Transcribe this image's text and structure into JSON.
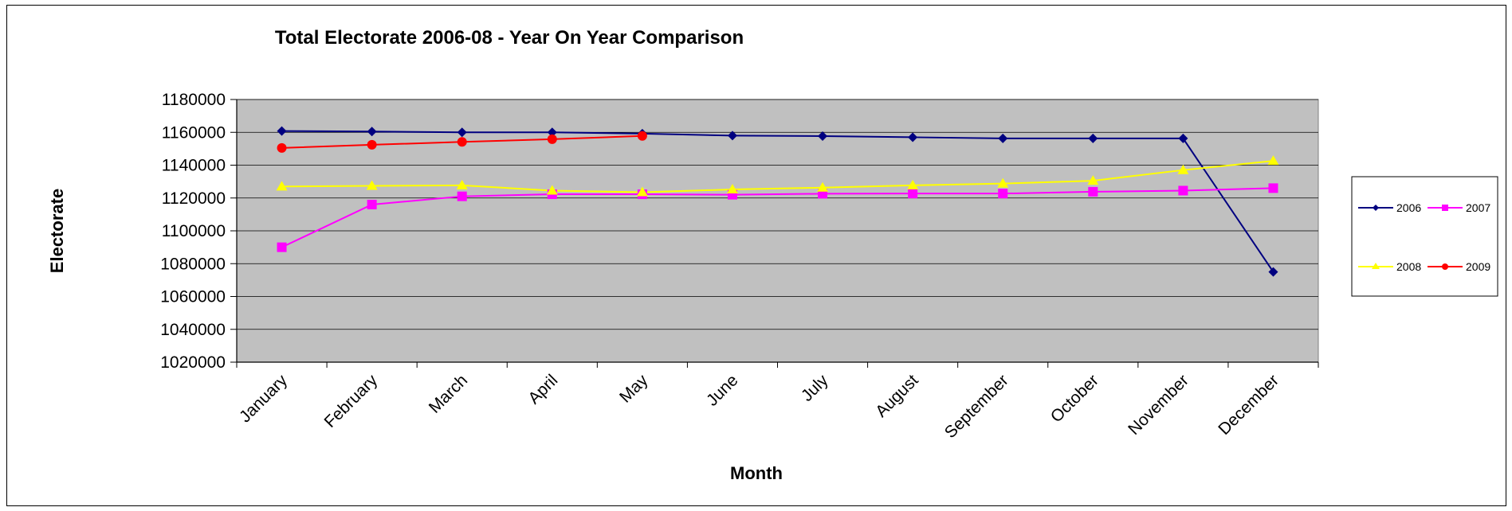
{
  "chart_data": {
    "type": "line",
    "title": "Total Electorate 2006-08 - Year On Year Comparison",
    "xlabel": "Month",
    "ylabel": "Electorate",
    "categories": [
      "January",
      "February",
      "March",
      "April",
      "May",
      "June",
      "July",
      "August",
      "September",
      "October",
      "November",
      "December"
    ],
    "ylim": [
      1020000,
      1180000
    ],
    "yticks": [
      1020000,
      1040000,
      1060000,
      1080000,
      1100000,
      1120000,
      1140000,
      1160000,
      1180000
    ],
    "grid": true,
    "legend_position": "right",
    "plot_background": "#C0C0C0",
    "series": [
      {
        "name": "2006",
        "color": "#000080",
        "marker": "diamond",
        "values": [
          1160800,
          1160500,
          1160000,
          1160000,
          1159200,
          1158000,
          1157700,
          1157000,
          1156300,
          1156300,
          1156300,
          1075000
        ]
      },
      {
        "name": "2007",
        "color": "#FF00FF",
        "marker": "square",
        "values": [
          1090000,
          1116000,
          1121000,
          1122300,
          1122300,
          1122000,
          1122600,
          1122700,
          1122700,
          1123800,
          1124500,
          1126000
        ]
      },
      {
        "name": "2008",
        "color": "#FFFF00",
        "marker": "triangle",
        "values": [
          1127000,
          1127400,
          1127700,
          1124500,
          1123500,
          1125200,
          1126300,
          1127700,
          1128800,
          1130500,
          1137000,
          1142600
        ]
      },
      {
        "name": "2009",
        "color": "#FF0000",
        "marker": "circle",
        "values": [
          1150500,
          1152400,
          1154200,
          1155800,
          1157800,
          null,
          null,
          null,
          null,
          null,
          null,
          null
        ]
      }
    ]
  }
}
